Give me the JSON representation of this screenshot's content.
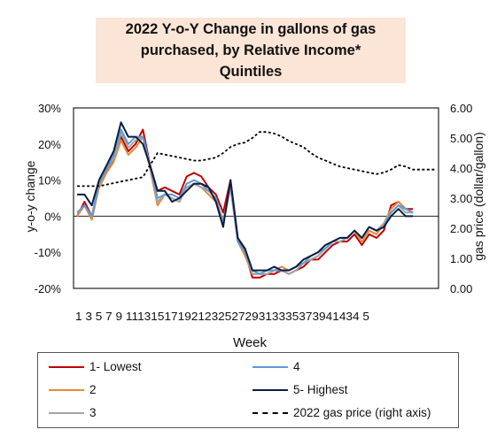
{
  "chart_data": {
    "type": "line",
    "title_lines": [
      "2022 Y-o-Y Change in gallons of gas",
      "purchased, by Relative Income*",
      "Quintiles"
    ],
    "xlabel": "Week",
    "ylabel": "y-o-y change",
    "y2label": "gas price (dollar/gallon)",
    "x": [
      1,
      2,
      3,
      4,
      5,
      6,
      7,
      8,
      9,
      10,
      11,
      12,
      13,
      14,
      15,
      16,
      17,
      18,
      19,
      20,
      21,
      22,
      23,
      24,
      25,
      26,
      27,
      28,
      29,
      30,
      31,
      32,
      33,
      34,
      35,
      36,
      37,
      38,
      39,
      40,
      41,
      42,
      43,
      44,
      45,
      46,
      47,
      48,
      49,
      50
    ],
    "x_tick_text": "1 3 5 7 9 11131517192123252729313335373941434 5",
    "ylim": [
      -20,
      30
    ],
    "y_ticks": [
      "-20%",
      "-10%",
      "0%",
      "10%",
      "20%",
      "30%"
    ],
    "y2lim": [
      0,
      6
    ],
    "y2_ticks": [
      "0.00",
      "1.00",
      "2.00",
      "3.00",
      "4.00",
      "5.00",
      "6.00"
    ],
    "legend_position": "bottom",
    "series": [
      {
        "name": "1- Lowest",
        "axis": "left",
        "color": "#c00000",
        "values": [
          0,
          4,
          0,
          8,
          12,
          16,
          22,
          18,
          20,
          24,
          14,
          7,
          8,
          7,
          6,
          11,
          12,
          11,
          8,
          6,
          1,
          10,
          -6,
          -10,
          -17,
          -17,
          -16,
          -16,
          -15,
          -16,
          -15,
          -14,
          -12,
          -12,
          -10,
          -8,
          -7,
          -7,
          -5,
          -8,
          -5,
          -6,
          -4,
          3,
          4,
          2,
          2,
          null,
          null,
          null
        ]
      },
      {
        "name": "2",
        "axis": "left",
        "color": "#e38b3c",
        "values": [
          0,
          3,
          -1,
          8,
          12,
          15,
          21,
          17,
          19,
          22,
          13,
          3,
          6,
          5,
          4,
          8,
          9,
          8,
          6,
          4,
          -1,
          8,
          -7,
          -11,
          -16,
          -16,
          -16,
          -15,
          -14,
          -15,
          -14,
          -13,
          -12,
          -11,
          -9,
          -7,
          -7,
          -6,
          -4,
          -7,
          -4,
          -5,
          -2,
          2,
          4,
          2,
          1,
          null,
          null,
          null
        ]
      },
      {
        "name": "3",
        "axis": "left",
        "color": "#a5a5a5",
        "values": [
          1,
          3,
          0,
          9,
          13,
          16,
          23,
          19,
          21,
          22,
          14,
          4,
          6,
          5,
          4,
          8,
          9,
          8,
          7,
          5,
          -2,
          8,
          -7,
          -10,
          -16,
          -16,
          -16,
          -15,
          -15,
          -16,
          -15,
          -13,
          -12,
          -11,
          -9,
          -7,
          -7,
          -6,
          -4,
          -6,
          -3,
          -4,
          -2,
          1,
          3,
          1,
          1,
          null,
          null,
          null
        ]
      },
      {
        "name": "4",
        "axis": "left",
        "color": "#5b9bd5",
        "values": [
          1,
          3,
          0,
          9,
          13,
          17,
          24,
          20,
          22,
          22,
          14,
          5,
          6,
          6,
          5,
          9,
          10,
          9,
          7,
          5,
          -2,
          9,
          -7,
          -10,
          -15,
          -16,
          -15,
          -15,
          -15,
          -15,
          -14,
          -13,
          -11,
          -10,
          -9,
          -7,
          -6,
          -6,
          -4,
          -6,
          -3,
          -4,
          -3,
          1,
          3,
          2,
          1,
          null,
          null,
          null
        ]
      },
      {
        "name": "5- Highest",
        "axis": "left",
        "color": "#0b1d40",
        "values": [
          6,
          6,
          3,
          10,
          14,
          18,
          26,
          22,
          22,
          20,
          14,
          7,
          7,
          4,
          5,
          7,
          9,
          9,
          8,
          4,
          -3,
          10,
          -6,
          -9,
          -15,
          -15,
          -15,
          -14,
          -15,
          -15,
          -14,
          -12,
          -11,
          -10,
          -8,
          -7,
          -6,
          -6,
          -4,
          -6,
          -3,
          -4,
          -3,
          0,
          2,
          0,
          0,
          null,
          null,
          null
        ]
      },
      {
        "name": "2022 gas price (right axis)",
        "axis": "right",
        "color": "#000000",
        "dashed": true,
        "values": [
          3.4,
          3.4,
          3.4,
          3.4,
          3.45,
          3.5,
          3.55,
          3.6,
          3.65,
          3.7,
          4.1,
          4.5,
          4.45,
          4.4,
          4.35,
          4.3,
          4.25,
          4.25,
          4.3,
          4.35,
          4.5,
          4.7,
          4.8,
          4.85,
          5.0,
          5.2,
          5.2,
          5.15,
          5.05,
          4.9,
          4.8,
          4.7,
          4.5,
          4.35,
          4.25,
          4.15,
          4.05,
          4.0,
          3.95,
          3.9,
          3.85,
          3.8,
          3.85,
          3.95,
          4.1,
          4.05,
          3.95,
          3.95,
          3.95,
          3.95
        ]
      }
    ]
  },
  "legend": {
    "entries": [
      "1- Lowest",
      "4",
      "2",
      "5- Highest",
      "3",
      "2022 gas price (right axis)"
    ]
  }
}
